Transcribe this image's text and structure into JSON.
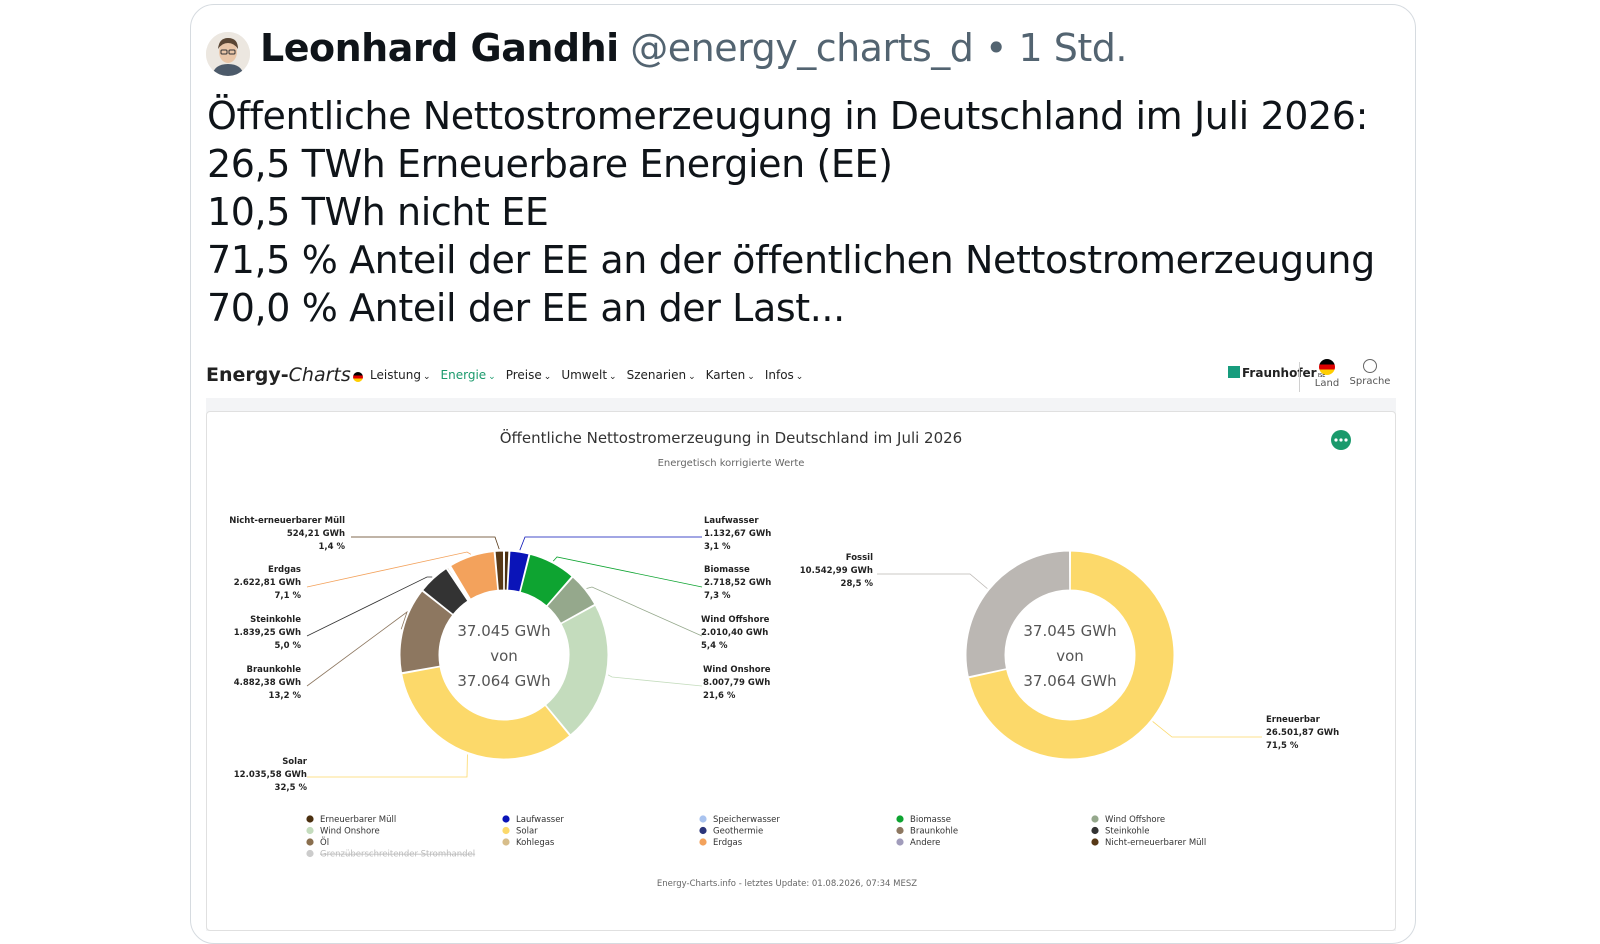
{
  "tweet": {
    "author_name": "Leonhard Gandhi",
    "handle": "@energy_charts_d",
    "separator": "•",
    "time": "1 Std.",
    "lines": [
      "Öffentliche Nettostromerzeugung in Deutschland im Juli 2026:",
      "26,5 TWh Erneuerbare Energien (EE)",
      "10,5 TWh nicht EE",
      "71,5 % Anteil der EE an der öffentlichen Nettostromerzeugung",
      "70,0 % Anteil der EE an der Last..."
    ]
  },
  "site": {
    "logo_a": "Energy-",
    "logo_b": "Charts",
    "menu": [
      "Leistung",
      "Energie",
      "Preise",
      "Umwelt",
      "Szenarien",
      "Karten",
      "Infos"
    ],
    "active_menu": "Energie",
    "partner": "Fraunhofer",
    "partner_sub": "ISE",
    "land_label": "Land",
    "language_label": "Sprache"
  },
  "colors": {
    "accent": "#1a9a6c",
    "Erneuerbarer Müll": "#4b3010",
    "Laufwasser": "#0a14b8",
    "Biomasse": "#0ea431",
    "Wind Offshore": "#95a88c",
    "Wind Onshore": "#c4dcbd",
    "Solar": "#fcd96a",
    "Braunkohle": "#8d7760",
    "Steinkohle": "#333333",
    "Öl": "#8a6f4e",
    "Kohlegas": "#d7bd8a",
    "Erdgas": "#f3a25c",
    "Nicht-erneuerbarer Müll": "#573816",
    "Speicherwasser": "#a9c3ef",
    "Geothermie": "#2b357a",
    "Andere": "#a19cbb",
    "Grenzüberschreitender Stromhandel": "#cfcfcf",
    "Fossil": "#bbb7b3",
    "Erneuerbar": "#fcd96a"
  },
  "chart_data": [
    {
      "type": "pie",
      "variant": "donut",
      "title": "Öffentliche Nettostromerzeugung in Deutschland im Juli 2026",
      "subtitle": "Energetisch korrigierte Werte",
      "center_lines": [
        "37.045 GWh",
        "von",
        "37.064 GWh"
      ],
      "unit": "GWh",
      "slices": [
        {
          "name": "Erneuerbarer Müll",
          "value": 300,
          "label": ""
        },
        {
          "name": "Laufwasser",
          "value": 1132.67,
          "value_label": "1.132,67 GWh",
          "pct": "3,1 %"
        },
        {
          "name": "Biomasse",
          "value": 2718.52,
          "value_label": "2.718,52 GWh",
          "pct": "7,3 %"
        },
        {
          "name": "Wind Offshore",
          "value": 2010.4,
          "value_label": "2.010,40 GWh",
          "pct": "5,4 %"
        },
        {
          "name": "Wind Onshore",
          "value": 8007.79,
          "value_label": "8.007,79 GWh",
          "pct": "21,6 %"
        },
        {
          "name": "Solar",
          "value": 12035.58,
          "value_label": "12.035,58 GWh",
          "pct": "32,5 %"
        },
        {
          "name": "Braunkohle",
          "value": 4882.38,
          "value_label": "4.882,38 GWh",
          "pct": "13,2 %"
        },
        {
          "name": "Steinkohle",
          "value": 1839.25,
          "value_label": "1.839,25 GWh",
          "pct": "5,0 %"
        },
        {
          "name": "Öl",
          "value": 120,
          "label": ""
        },
        {
          "name": "Kohlegas",
          "value": 110,
          "label": ""
        },
        {
          "name": "Erdgas",
          "value": 2622.81,
          "value_label": "2.622,81 GWh",
          "pct": "7,1 %"
        },
        {
          "name": "Nicht-erneuerbarer Müll",
          "value": 524.21,
          "value_label": "524,21 GWh",
          "pct": "1,4 %"
        }
      ],
      "legend": [
        "Erneuerbarer Müll",
        "Laufwasser",
        "Speicherwasser",
        "Biomasse",
        "Wind Offshore",
        "Wind Onshore",
        "Solar",
        "Geothermie",
        "Braunkohle",
        "Steinkohle",
        "Öl",
        "Kohlegas",
        "Erdgas",
        "Andere",
        "Nicht-erneuerbarer Müll",
        "Grenzüberschreitender Stromhandel"
      ],
      "legend_disabled": [
        "Grenzüberschreitender Stromhandel"
      ],
      "credits": "Energy-Charts.info - letztes Update: 01.08.2026, 07:34 MESZ"
    },
    {
      "type": "pie",
      "variant": "donut",
      "center_lines": [
        "37.045 GWh",
        "von",
        "37.064 GWh"
      ],
      "unit": "GWh",
      "slices": [
        {
          "name": "Erneuerbar",
          "value": 26501.87,
          "value_label": "26.501,87 GWh",
          "pct": "71,5 %"
        },
        {
          "name": "Fossil",
          "value": 10542.99,
          "value_label": "10.542,99 GWh",
          "pct": "28,5 %"
        }
      ]
    }
  ]
}
